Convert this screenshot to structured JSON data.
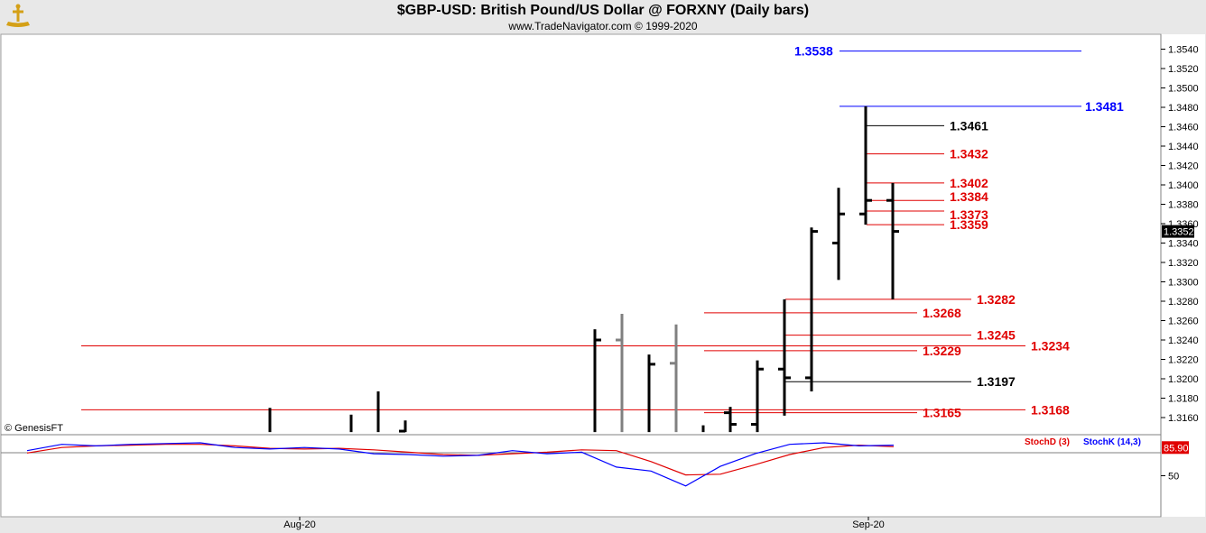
{
  "header": {
    "title": "$GBP-USD:  British Pound/US Dollar @ FORXNY  (Daily bars)",
    "subtitle": "www.TradeNavigator.com © 1999-2020",
    "copyright": "© GenesisFT"
  },
  "colors": {
    "bar": "#000000",
    "bar_gray": "#808080",
    "level_red": "#e00000",
    "level_blue": "#0000ff",
    "level_black": "#000000",
    "stoch_d": "#e00000",
    "stoch_k": "#0000ff"
  },
  "chart_data": [
    {
      "type": "bar",
      "title": "$GBP-USD:  British Pound/US Dollar @ FORXNY  (Daily bars)",
      "ylim": [
        1.3145,
        1.3555
      ],
      "yticks": [
        "1.3160",
        "1.3180",
        "1.3200",
        "1.3220",
        "1.3240",
        "1.3260",
        "1.3280",
        "1.3300",
        "1.3320",
        "1.3340",
        "1.3360",
        "1.3380",
        "1.3400",
        "1.3420",
        "1.3440",
        "1.3460",
        "1.3480",
        "1.3500",
        "1.3520",
        "1.3540"
      ],
      "xticks": [
        "Aug-20",
        "Sep-20"
      ],
      "last_price": "1.3352",
      "bars": [
        {
          "high": 1.317,
          "low": 1.3145,
          "open": null,
          "close": null,
          "color": "black"
        },
        {
          "high": 1.3163,
          "low": 1.3145,
          "open": null,
          "close": null,
          "color": "black"
        },
        {
          "high": 1.3187,
          "low": 1.3145,
          "open": null,
          "close": null,
          "color": "black"
        },
        {
          "high": 1.3157,
          "low": 1.3145,
          "open": 1.3146,
          "close": null,
          "color": "black"
        },
        {
          "high": 1.3251,
          "low": 1.3145,
          "open": null,
          "close": 1.324,
          "color": "black"
        },
        {
          "high": 1.3267,
          "low": 1.3145,
          "open": 1.324,
          "close": null,
          "color": "gray"
        },
        {
          "high": 1.3225,
          "low": 1.3145,
          "open": null,
          "close": 1.3215,
          "color": "black"
        },
        {
          "high": 1.3256,
          "low": 1.3145,
          "open": 1.3216,
          "close": null,
          "color": "gray"
        },
        {
          "high": 1.3152,
          "low": 1.3145,
          "open": null,
          "close": null,
          "color": "black"
        },
        {
          "high": 1.3171,
          "low": 1.3145,
          "open": 1.3165,
          "close": 1.3153,
          "color": "black"
        },
        {
          "high": 1.3219,
          "low": 1.3145,
          "open": 1.3153,
          "close": 1.321,
          "color": "black"
        },
        {
          "high": 1.3282,
          "low": 1.3162,
          "open": 1.321,
          "close": 1.3201,
          "color": "black"
        },
        {
          "high": 1.3356,
          "low": 1.3187,
          "open": 1.3201,
          "close": 1.3352,
          "color": "black"
        },
        {
          "high": 1.3397,
          "low": 1.3302,
          "open": 1.334,
          "close": 1.337,
          "color": "black"
        },
        {
          "high": 1.3481,
          "low": 1.3359,
          "open": 1.337,
          "close": 1.3384,
          "color": "black"
        },
        {
          "high": 1.3402,
          "low": 1.3282,
          "open": 1.3384,
          "close": 1.3352,
          "color": "black"
        }
      ],
      "levels": [
        {
          "value": "1.3538",
          "color": "blue"
        },
        {
          "value": "1.3481",
          "color": "blue"
        },
        {
          "value": "1.3461",
          "color": "black"
        },
        {
          "value": "1.3432",
          "color": "red"
        },
        {
          "value": "1.3402",
          "color": "red"
        },
        {
          "value": "1.3384",
          "color": "red"
        },
        {
          "value": "1.3373",
          "color": "red"
        },
        {
          "value": "1.3359",
          "color": "red"
        },
        {
          "value": "1.3282",
          "color": "red"
        },
        {
          "value": "1.3268",
          "color": "red"
        },
        {
          "value": "1.3245",
          "color": "red"
        },
        {
          "value": "1.3234",
          "color": "red"
        },
        {
          "value": "1.3229",
          "color": "red"
        },
        {
          "value": "1.3197",
          "color": "black"
        },
        {
          "value": "1.3168",
          "color": "red"
        },
        {
          "value": "1.3165",
          "color": "red"
        }
      ]
    },
    {
      "type": "line",
      "ylim": [
        0,
        100
      ],
      "yticks": [
        "50"
      ],
      "last_value": "85.90",
      "series": [
        {
          "name": "StochD (3)",
          "values": [
            79,
            86,
            88,
            89,
            90,
            90,
            88,
            85,
            84,
            85,
            83,
            80,
            77,
            76,
            78,
            80,
            83,
            82,
            68,
            51,
            52,
            64,
            77,
            86,
            89,
            87
          ]
        },
        {
          "name": "StochK (14,3)",
          "values": [
            82,
            90,
            88,
            90,
            91,
            92,
            86,
            84,
            86,
            84,
            78,
            77,
            75,
            76,
            82,
            78,
            80,
            61,
            56,
            37,
            62,
            78,
            90,
            92,
            88,
            89
          ]
        }
      ]
    }
  ]
}
